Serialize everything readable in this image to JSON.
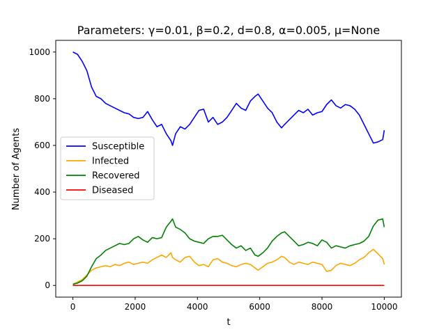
{
  "chart_data": {
    "type": "line",
    "title": "Parameters: γ=0.01, β=0.2, d=0.8, α=0.005, μ=None",
    "xlabel": "t",
    "ylabel": "Number of Agents",
    "xlim": [
      -550,
      10550
    ],
    "ylim": [
      -50,
      1050
    ],
    "x_ticks": [
      0,
      2000,
      4000,
      6000,
      8000,
      10000
    ],
    "y_ticks": [
      0,
      200,
      400,
      600,
      800,
      1000
    ],
    "grid": false,
    "legend_position": "center-left",
    "series": [
      {
        "name": "Susceptible",
        "color": "#0000ff",
        "x": [
          0,
          150,
          300,
          450,
          600,
          750,
          900,
          1050,
          1200,
          1350,
          1500,
          1650,
          1800,
          1950,
          2100,
          2250,
          2400,
          2550,
          2700,
          2850,
          3000,
          3150,
          3200,
          3300,
          3450,
          3600,
          3750,
          3900,
          4050,
          4200,
          4350,
          4500,
          4650,
          4800,
          4950,
          5100,
          5250,
          5400,
          5550,
          5700,
          5850,
          5950,
          6100,
          6250,
          6400,
          6550,
          6700,
          6800,
          6950,
          7100,
          7250,
          7400,
          7550,
          7700,
          7850,
          8000,
          8150,
          8300,
          8450,
          8600,
          8750,
          8900,
          9050,
          9200,
          9350,
          9500,
          9650,
          9800,
          9950,
          10000
        ],
        "y": [
          1000,
          990,
          960,
          920,
          850,
          810,
          800,
          780,
          770,
          760,
          750,
          740,
          735,
          720,
          715,
          720,
          745,
          710,
          680,
          690,
          650,
          620,
          600,
          650,
          680,
          670,
          690,
          720,
          750,
          755,
          700,
          720,
          690,
          700,
          720,
          750,
          780,
          760,
          750,
          790,
          810,
          820,
          790,
          760,
          740,
          700,
          675,
          690,
          710,
          730,
          750,
          740,
          755,
          730,
          740,
          745,
          775,
          795,
          770,
          760,
          775,
          770,
          755,
          730,
          690,
          650,
          610,
          615,
          625,
          665
        ]
      },
      {
        "name": "Infected",
        "color": "#ffa500",
        "x": [
          0,
          150,
          300,
          450,
          600,
          750,
          900,
          1050,
          1200,
          1350,
          1500,
          1650,
          1800,
          1950,
          2100,
          2250,
          2400,
          2550,
          2700,
          2850,
          3000,
          3150,
          3200,
          3300,
          3450,
          3600,
          3750,
          3900,
          4050,
          4200,
          4350,
          4500,
          4650,
          4800,
          4950,
          5100,
          5250,
          5400,
          5550,
          5700,
          5850,
          5950,
          6100,
          6250,
          6400,
          6550,
          6700,
          6800,
          6950,
          7100,
          7250,
          7400,
          7550,
          7700,
          7850,
          8000,
          8150,
          8300,
          8450,
          8600,
          8750,
          8900,
          9050,
          9200,
          9350,
          9500,
          9650,
          9800,
          9950,
          10000
        ],
        "y": [
          5,
          15,
          25,
          45,
          65,
          75,
          80,
          85,
          80,
          90,
          85,
          95,
          100,
          90,
          95,
          100,
          95,
          110,
          120,
          130,
          120,
          140,
          120,
          110,
          100,
          120,
          125,
          100,
          85,
          90,
          80,
          110,
          115,
          100,
          95,
          85,
          80,
          90,
          95,
          90,
          75,
          65,
          80,
          95,
          100,
          110,
          125,
          120,
          100,
          90,
          100,
          95,
          90,
          100,
          95,
          90,
          60,
          65,
          85,
          95,
          90,
          85,
          95,
          110,
          120,
          140,
          155,
          135,
          115,
          90
        ]
      },
      {
        "name": "Recovered",
        "color": "#008000",
        "x": [
          0,
          150,
          300,
          450,
          600,
          750,
          900,
          1050,
          1200,
          1350,
          1500,
          1650,
          1800,
          1950,
          2100,
          2250,
          2400,
          2550,
          2700,
          2850,
          3000,
          3150,
          3200,
          3300,
          3450,
          3600,
          3750,
          3900,
          4050,
          4200,
          4350,
          4500,
          4650,
          4800,
          4950,
          5100,
          5250,
          5400,
          5550,
          5700,
          5850,
          5950,
          6100,
          6250,
          6400,
          6550,
          6700,
          6800,
          6950,
          7100,
          7250,
          7400,
          7550,
          7700,
          7850,
          8000,
          8150,
          8300,
          8450,
          8600,
          8750,
          8900,
          9050,
          9200,
          9350,
          9500,
          9650,
          9800,
          9950,
          10000
        ],
        "y": [
          5,
          10,
          20,
          40,
          80,
          115,
          130,
          150,
          160,
          170,
          180,
          175,
          180,
          200,
          210,
          195,
          185,
          205,
          200,
          205,
          250,
          275,
          285,
          250,
          240,
          225,
          200,
          190,
          185,
          180,
          200,
          210,
          210,
          215,
          195,
          175,
          160,
          170,
          150,
          160,
          130,
          125,
          140,
          160,
          190,
          210,
          225,
          230,
          210,
          190,
          170,
          175,
          185,
          180,
          170,
          195,
          185,
          160,
          170,
          165,
          160,
          170,
          175,
          180,
          190,
          210,
          255,
          280,
          285,
          250
        ]
      },
      {
        "name": "Diseased",
        "color": "#ff0000",
        "x": [
          0,
          10000
        ],
        "y": [
          0,
          0
        ]
      }
    ]
  }
}
